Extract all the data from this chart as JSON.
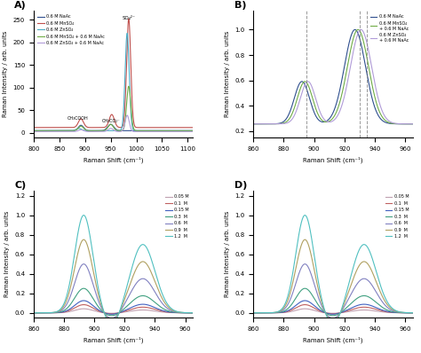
{
  "panel_A": {
    "xlabel": "Raman Shift (cm⁻¹)",
    "ylabel": "Raman Intensity / arb. units",
    "xlim": [
      800,
      1110
    ],
    "ylim": [
      -10,
      270
    ],
    "so4_label": "SO₄²⁻",
    "ch3cooh_label": "CH₃COOH",
    "ch3co2_label": "CH₃CO₂⁻",
    "legend": [
      "0.6 M NaAc",
      "0.6 M MnSO₄",
      "0.6 M ZnSO₄",
      "0.6 M MnSO₄ + 0.6 M NaAc",
      "0.6 M ZnSO₄ + 0.6 M NaAc"
    ],
    "colors": [
      "#2f4f8f",
      "#c0504d",
      "#4bacc6",
      "#70ad47",
      "#b19cd9"
    ]
  },
  "panel_B": {
    "xlabel": "Raman Shift (cm⁻¹)",
    "ylabel": "Raman Intensity / arb. units",
    "xlim": [
      860,
      965
    ],
    "ylim": [
      0.15,
      1.15
    ],
    "dashed_lines": [
      895,
      930,
      935
    ],
    "legend": [
      "0.6 M NaAc",
      "0.6 M MnSO₄\n+ 0.6 M NaAc",
      "0.6 M ZnSO₄\n+ 0.6 M NaAc"
    ],
    "colors": [
      "#2f4f8f",
      "#70ad47",
      "#b19cd9"
    ]
  },
  "panel_C": {
    "xlabel": "Raman Shift (cm⁻¹)",
    "ylabel": "Raman Intensity / arb. units",
    "xlim": [
      860,
      965
    ],
    "ylim": [
      -0.05,
      1.25
    ],
    "legend": [
      "0.05 M",
      "0.1  M",
      "0.15 M",
      "0.3  M",
      "0.6  M",
      "0.9  M",
      "1.2  M"
    ],
    "colors": [
      "#c0a0b0",
      "#c06060",
      "#4060c0",
      "#40a080",
      "#8080c0",
      "#b0a060",
      "#50c0c0"
    ]
  },
  "panel_D": {
    "xlabel": "Raman Shift (cm⁻¹)",
    "ylabel": "Raman Intensity / arb. units",
    "xlim": [
      860,
      965
    ],
    "ylim": [
      -0.05,
      1.25
    ],
    "legend": [
      "0.05 M",
      "0.1  M",
      "0.15 M",
      "0.3  M",
      "0.6  M",
      "0.9  M",
      "1.2  M"
    ],
    "colors": [
      "#c0a0b0",
      "#c06060",
      "#4060c0",
      "#40a080",
      "#8080c0",
      "#b0a060",
      "#50c0c0"
    ]
  }
}
